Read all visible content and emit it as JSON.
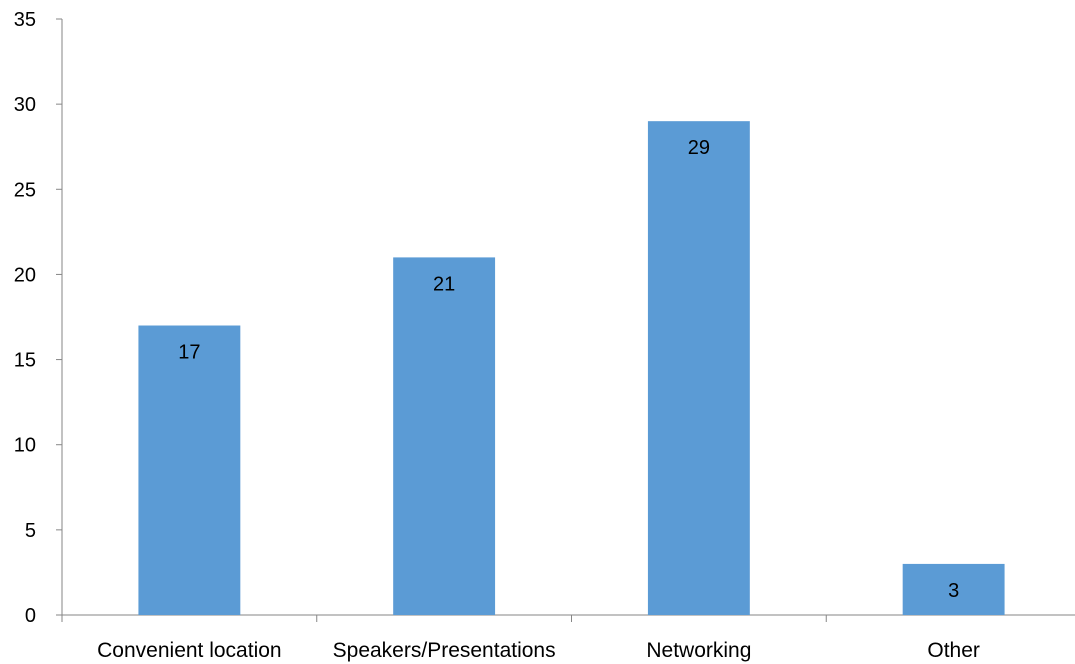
{
  "chart_data": {
    "type": "bar",
    "categories": [
      "Convenient location",
      "Speakers/Presentations",
      "Networking",
      "Other"
    ],
    "values": [
      17,
      21,
      29,
      3
    ],
    "title": "",
    "xlabel": "",
    "ylabel": "",
    "ylim": [
      0,
      35
    ],
    "yticks": [
      0,
      5,
      10,
      15,
      20,
      25,
      30,
      35
    ],
    "grid": false,
    "legend": "none",
    "data_labels": true,
    "bar_color": "#5b9bd5"
  }
}
